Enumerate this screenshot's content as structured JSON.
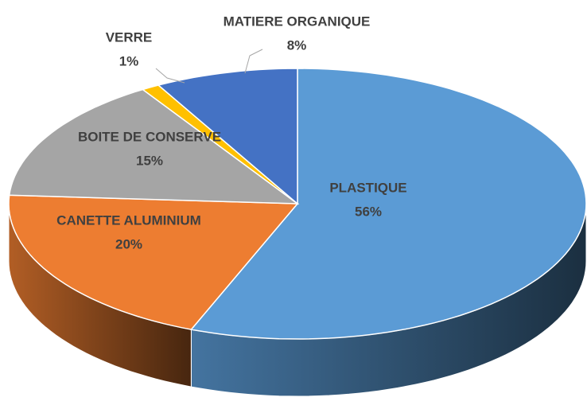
{
  "chart_data": {
    "type": "pie",
    "categories": [
      "PLASTIQUE",
      "CANETTE ALUMINIUM",
      "BOITE DE CONSERVE",
      "VERRE",
      "MATIERE ORGANIQUE"
    ],
    "values": [
      56,
      20,
      15,
      1,
      8
    ],
    "value_labels": [
      "56%",
      "20%",
      "15%",
      "1%",
      "8%"
    ],
    "colors": [
      "#5b9bd5",
      "#ed7d31",
      "#a5a5a5",
      "#ffc000",
      "#4472c4"
    ]
  }
}
